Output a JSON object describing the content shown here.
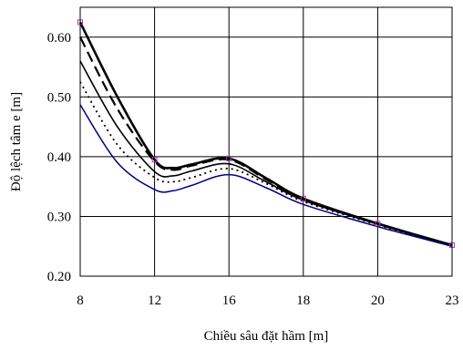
{
  "chart_data": {
    "type": "line",
    "title": "",
    "xlabel": "Chiều sâu đặt hầm [m]",
    "ylabel": "Độ lệch tâm e [m]",
    "x_categories": [
      "8",
      "12",
      "16",
      "18",
      "20",
      "23"
    ],
    "y_ticks": [
      "0.20",
      "0.30",
      "0.40",
      "0.50",
      "0.60"
    ],
    "ylim": [
      0.2,
      0.65
    ],
    "grid": true,
    "legend": "none",
    "series": [
      {
        "style": "bold-solid",
        "color": "#000000",
        "x": [
          8,
          10,
          12,
          13,
          14,
          16,
          17,
          18,
          20,
          23
        ],
        "y": [
          0.625,
          0.5,
          0.395,
          0.381,
          0.387,
          0.397,
          0.364,
          0.33,
          0.288,
          0.252
        ],
        "markers": "square",
        "marker_color": "#a040a0"
      },
      {
        "style": "bold-dashed",
        "color": "#000000",
        "x": [
          8,
          10,
          12,
          13,
          14,
          16,
          17,
          18,
          20,
          23
        ],
        "y": [
          0.6,
          0.48,
          0.392,
          0.378,
          0.385,
          0.395,
          0.362,
          0.329,
          0.288,
          0.252
        ]
      },
      {
        "style": "solid",
        "color": "#000000",
        "x": [
          8,
          10,
          12,
          13,
          14,
          16,
          17,
          18,
          20,
          23
        ],
        "y": [
          0.56,
          0.45,
          0.375,
          0.368,
          0.376,
          0.388,
          0.358,
          0.327,
          0.287,
          0.251
        ]
      },
      {
        "style": "dotted",
        "color": "#000000",
        "x": [
          8,
          10,
          12,
          13,
          14,
          16,
          17,
          18,
          20,
          23
        ],
        "y": [
          0.525,
          0.42,
          0.365,
          0.358,
          0.365,
          0.38,
          0.355,
          0.325,
          0.286,
          0.251
        ]
      },
      {
        "style": "solid-thin",
        "color": "#000080",
        "x": [
          8,
          10,
          12,
          13,
          14,
          16,
          17,
          18,
          20,
          23
        ],
        "y": [
          0.487,
          0.39,
          0.345,
          0.343,
          0.352,
          0.37,
          0.348,
          0.32,
          0.283,
          0.25
        ]
      }
    ]
  }
}
